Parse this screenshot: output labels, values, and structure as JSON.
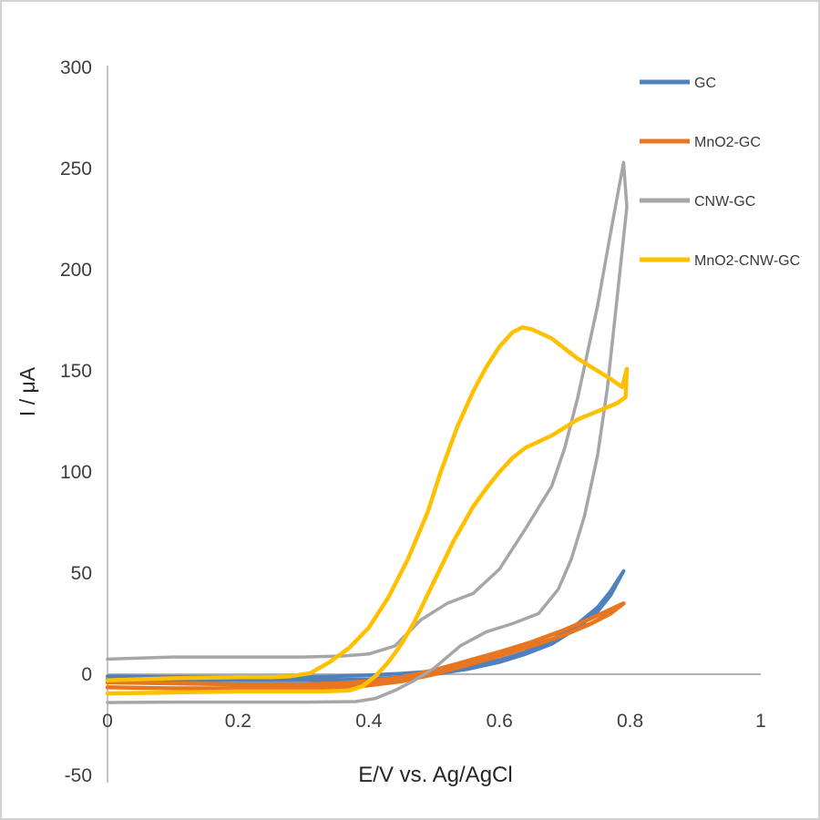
{
  "page": {
    "background": "#ffffff",
    "frame_border_color": "#d2d2d2"
  },
  "chart_data": {
    "type": "line",
    "subtype": "cyclic-voltammogram",
    "title": "",
    "xlabel": "E/V vs. Ag/AgCl",
    "ylabel": "I / μA",
    "xlim": [
      0,
      1
    ],
    "ylim": [
      -50,
      300
    ],
    "x_ticks": [
      0,
      0.2,
      0.4,
      0.6,
      0.8,
      1
    ],
    "x_tick_labels": [
      "0",
      "0.2",
      "0.4",
      "0.6",
      "0.8",
      "1"
    ],
    "y_ticks": [
      300,
      250,
      200,
      150,
      100,
      50,
      0,
      -50
    ],
    "y_tick_labels": [
      "300",
      "250",
      "200",
      "150",
      "100",
      "50",
      "0",
      "-50"
    ],
    "grid": false,
    "legend_position": "upper-right",
    "axis_line_color": "#c6c6c6",
    "zero_line_color": "#b3b3b3",
    "tick_label_color": "#3d3d44",
    "axis_title_color": "#26262b",
    "legend_text_color": "#38383f",
    "series": [
      {
        "name": "GC",
        "color": "#4e81bd",
        "points": [
          [
            0,
            -1
          ],
          [
            0.1,
            -1.2
          ],
          [
            0.2,
            -1.3
          ],
          [
            0.3,
            -1.3
          ],
          [
            0.35,
            -1
          ],
          [
            0.4,
            -0.5
          ],
          [
            0.45,
            0.3
          ],
          [
            0.5,
            1.5
          ],
          [
            0.55,
            3.5
          ],
          [
            0.6,
            7
          ],
          [
            0.64,
            11
          ],
          [
            0.68,
            17
          ],
          [
            0.72,
            25
          ],
          [
            0.75,
            33
          ],
          [
            0.77,
            41
          ],
          [
            0.79,
            51
          ],
          [
            0.77,
            39
          ],
          [
            0.75,
            31
          ],
          [
            0.72,
            23
          ],
          [
            0.68,
            15
          ],
          [
            0.64,
            10
          ],
          [
            0.6,
            6
          ],
          [
            0.55,
            2.5
          ],
          [
            0.5,
            0
          ],
          [
            0.45,
            -1.5
          ],
          [
            0.4,
            -2.5
          ],
          [
            0.35,
            -2.8
          ],
          [
            0.3,
            -3
          ],
          [
            0.2,
            -3
          ],
          [
            0.1,
            -2.8
          ],
          [
            0,
            -2.5
          ]
        ]
      },
      {
        "name": "MnO2-GC",
        "color": "#e8751f",
        "points": [
          [
            0,
            -4
          ],
          [
            0.1,
            -4.5
          ],
          [
            0.2,
            -5
          ],
          [
            0.3,
            -5
          ],
          [
            0.35,
            -4.5
          ],
          [
            0.4,
            -3.5
          ],
          [
            0.45,
            -1.5
          ],
          [
            0.5,
            2
          ],
          [
            0.55,
            6.5
          ],
          [
            0.6,
            11
          ],
          [
            0.65,
            16
          ],
          [
            0.7,
            22
          ],
          [
            0.75,
            29
          ],
          [
            0.79,
            35
          ],
          [
            0.77,
            30
          ],
          [
            0.74,
            25
          ],
          [
            0.7,
            19.5
          ],
          [
            0.65,
            14
          ],
          [
            0.6,
            9
          ],
          [
            0.55,
            4.5
          ],
          [
            0.5,
            0
          ],
          [
            0.45,
            -3.5
          ],
          [
            0.4,
            -5.5
          ],
          [
            0.35,
            -6.5
          ],
          [
            0.3,
            -7
          ],
          [
            0.2,
            -7
          ],
          [
            0.1,
            -7
          ],
          [
            0,
            -6.5
          ]
        ]
      },
      {
        "name": "CNW-GC",
        "color": "#a6a6a6",
        "points": [
          [
            0,
            7.5
          ],
          [
            0.05,
            8
          ],
          [
            0.1,
            8.5
          ],
          [
            0.2,
            8.5
          ],
          [
            0.3,
            8.5
          ],
          [
            0.36,
            9
          ],
          [
            0.4,
            10
          ],
          [
            0.44,
            14
          ],
          [
            0.48,
            27
          ],
          [
            0.52,
            35
          ],
          [
            0.56,
            40
          ],
          [
            0.6,
            52
          ],
          [
            0.64,
            72
          ],
          [
            0.68,
            93
          ],
          [
            0.7,
            112
          ],
          [
            0.72,
            137
          ],
          [
            0.75,
            182
          ],
          [
            0.77,
            218
          ],
          [
            0.79,
            253
          ],
          [
            0.795,
            231
          ],
          [
            0.78,
            186
          ],
          [
            0.765,
            141
          ],
          [
            0.75,
            108
          ],
          [
            0.73,
            78
          ],
          [
            0.71,
            57
          ],
          [
            0.69,
            42
          ],
          [
            0.66,
            30
          ],
          [
            0.62,
            25
          ],
          [
            0.58,
            21
          ],
          [
            0.54,
            14
          ],
          [
            0.5,
            3
          ],
          [
            0.47,
            -3
          ],
          [
            0.44,
            -8
          ],
          [
            0.41,
            -12
          ],
          [
            0.38,
            -13.5
          ],
          [
            0.3,
            -13.8
          ],
          [
            0.2,
            -13.8
          ],
          [
            0.1,
            -13.8
          ],
          [
            0,
            -14
          ]
        ]
      },
      {
        "name": "MnO2-CNW-GC",
        "color": "#ffc000",
        "points": [
          [
            0,
            -3
          ],
          [
            0.05,
            -2.5
          ],
          [
            0.1,
            -2
          ],
          [
            0.15,
            -1.7
          ],
          [
            0.2,
            -1.5
          ],
          [
            0.25,
            -1.5
          ],
          [
            0.28,
            -1
          ],
          [
            0.31,
            0.5
          ],
          [
            0.34,
            6
          ],
          [
            0.37,
            13
          ],
          [
            0.4,
            23
          ],
          [
            0.43,
            38
          ],
          [
            0.46,
            57
          ],
          [
            0.49,
            80
          ],
          [
            0.51,
            100
          ],
          [
            0.535,
            122
          ],
          [
            0.56,
            140
          ],
          [
            0.58,
            152
          ],
          [
            0.6,
            162
          ],
          [
            0.62,
            169
          ],
          [
            0.635,
            171.5
          ],
          [
            0.65,
            170.5
          ],
          [
            0.68,
            166
          ],
          [
            0.7,
            161
          ],
          [
            0.72,
            156
          ],
          [
            0.75,
            150
          ],
          [
            0.77,
            146
          ],
          [
            0.788,
            142
          ],
          [
            0.795,
            151
          ],
          [
            0.793,
            137
          ],
          [
            0.78,
            134
          ],
          [
            0.75,
            130
          ],
          [
            0.72,
            126
          ],
          [
            0.7,
            122
          ],
          [
            0.68,
            118
          ],
          [
            0.66,
            115
          ],
          [
            0.64,
            112
          ],
          [
            0.62,
            107
          ],
          [
            0.6,
            100
          ],
          [
            0.58,
            92
          ],
          [
            0.56,
            83
          ],
          [
            0.53,
            66
          ],
          [
            0.5,
            46
          ],
          [
            0.47,
            26
          ],
          [
            0.45,
            15
          ],
          [
            0.43,
            6
          ],
          [
            0.41,
            -1
          ],
          [
            0.39,
            -6
          ],
          [
            0.37,
            -8
          ],
          [
            0.33,
            -8.5
          ],
          [
            0.28,
            -8.5
          ],
          [
            0.2,
            -8.5
          ],
          [
            0.1,
            -9
          ],
          [
            0,
            -9.5
          ]
        ]
      }
    ]
  }
}
